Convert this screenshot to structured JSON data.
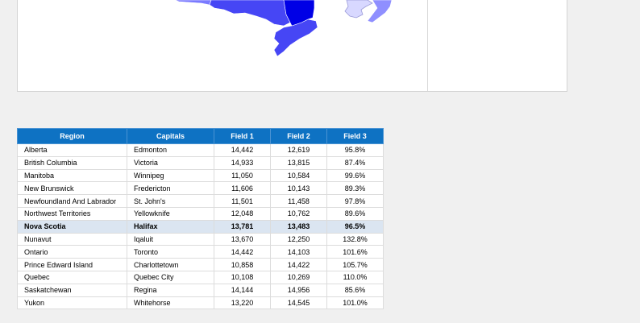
{
  "colors": {
    "header_bg": "#0e72c3",
    "selected_row_bg": "#dbe5f1",
    "map_dark": "#0000e6",
    "map_mid": "#4646f5",
    "map_light": "#7a7aff",
    "map_pale": "#d8d8ff"
  },
  "table": {
    "columns": [
      "Region",
      "Capitals",
      "Field 1",
      "Field 2",
      "Field 3"
    ],
    "selected_row": 6,
    "rows": [
      [
        "Alberta",
        "Edmonton",
        "14,442",
        "12,619",
        "95.8%"
      ],
      [
        "British Columbia",
        "Victoria",
        "14,933",
        "13,815",
        "87.4%"
      ],
      [
        "Manitoba",
        "Winnipeg",
        "11,050",
        "10,584",
        "99.6%"
      ],
      [
        "New Brunswick",
        "Fredericton",
        "11,606",
        "10,143",
        "89.3%"
      ],
      [
        "Newfoundland And Labrador",
        "St. John's",
        "11,501",
        "11,458",
        "97.8%"
      ],
      [
        "Northwest Territories",
        "Yellowknife",
        "12,048",
        "10,762",
        "89.6%"
      ],
      [
        "Nova Scotia",
        "Halifax",
        "13,781",
        "13,483",
        "96.5%"
      ],
      [
        "Nunavut",
        "Iqaluit",
        "13,670",
        "12,250",
        "132.8%"
      ],
      [
        "Ontario",
        "Toronto",
        "14,442",
        "14,103",
        "101.6%"
      ],
      [
        "Prince Edward Island",
        "Charlottetown",
        "10,858",
        "14,422",
        "105.7%"
      ],
      [
        "Quebec",
        "Quebec City",
        "10,108",
        "10,269",
        "110.0%"
      ],
      [
        "Saskatchewan",
        "Regina",
        "14,144",
        "14,956",
        "85.6%"
      ],
      [
        "Yukon",
        "Whitehorse",
        "13,220",
        "14,545",
        "101.0%"
      ]
    ]
  }
}
